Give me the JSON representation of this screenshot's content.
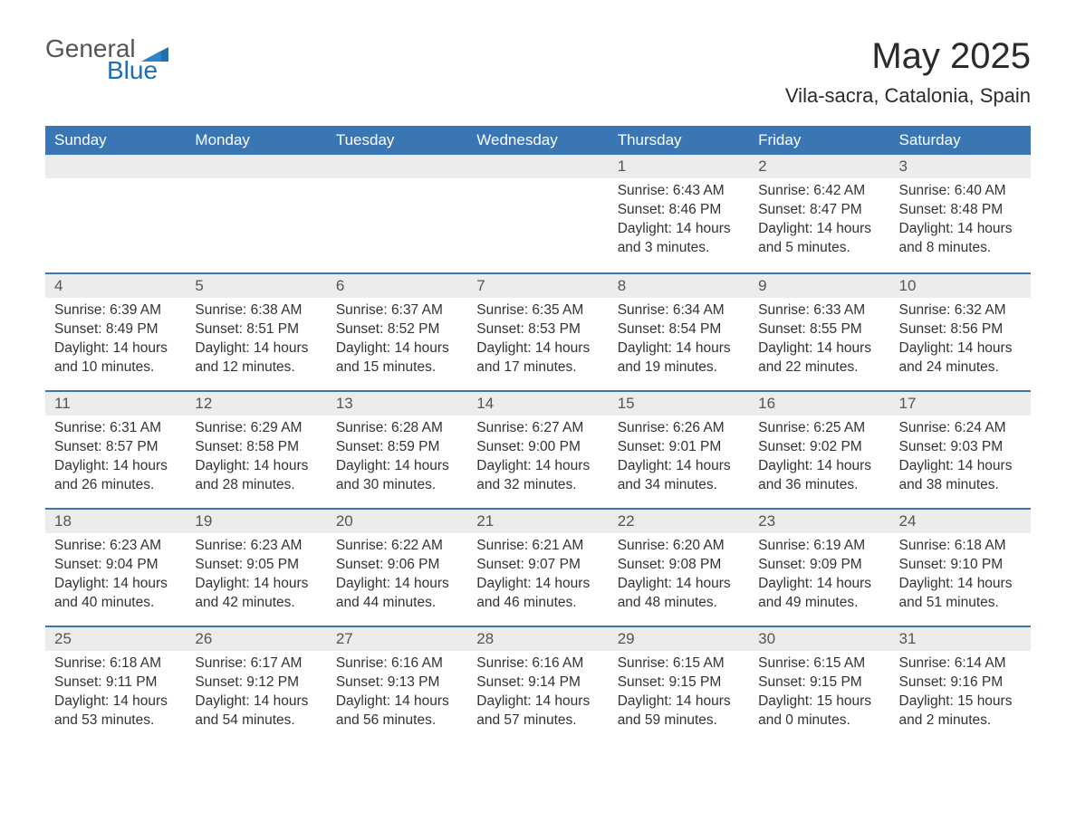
{
  "logo": {
    "text1": "General",
    "text2": "Blue",
    "shape_color": "#1f6fb2"
  },
  "title": "May 2025",
  "subtitle": "Vila-sacra, Catalonia, Spain",
  "colors": {
    "header_bg": "#3a76b3",
    "header_text": "#ffffff",
    "daynum_bg": "#ececec",
    "row_divider": "#3a76b3",
    "text": "#333333",
    "page_bg": "#ffffff"
  },
  "day_names": [
    "Sunday",
    "Monday",
    "Tuesday",
    "Wednesday",
    "Thursday",
    "Friday",
    "Saturday"
  ],
  "weeks": [
    [
      null,
      null,
      null,
      null,
      {
        "n": "1",
        "sunrise": "Sunrise: 6:43 AM",
        "sunset": "Sunset: 8:46 PM",
        "daylight": "Daylight: 14 hours and 3 minutes."
      },
      {
        "n": "2",
        "sunrise": "Sunrise: 6:42 AM",
        "sunset": "Sunset: 8:47 PM",
        "daylight": "Daylight: 14 hours and 5 minutes."
      },
      {
        "n": "3",
        "sunrise": "Sunrise: 6:40 AM",
        "sunset": "Sunset: 8:48 PM",
        "daylight": "Daylight: 14 hours and 8 minutes."
      }
    ],
    [
      {
        "n": "4",
        "sunrise": "Sunrise: 6:39 AM",
        "sunset": "Sunset: 8:49 PM",
        "daylight": "Daylight: 14 hours and 10 minutes."
      },
      {
        "n": "5",
        "sunrise": "Sunrise: 6:38 AM",
        "sunset": "Sunset: 8:51 PM",
        "daylight": "Daylight: 14 hours and 12 minutes."
      },
      {
        "n": "6",
        "sunrise": "Sunrise: 6:37 AM",
        "sunset": "Sunset: 8:52 PM",
        "daylight": "Daylight: 14 hours and 15 minutes."
      },
      {
        "n": "7",
        "sunrise": "Sunrise: 6:35 AM",
        "sunset": "Sunset: 8:53 PM",
        "daylight": "Daylight: 14 hours and 17 minutes."
      },
      {
        "n": "8",
        "sunrise": "Sunrise: 6:34 AM",
        "sunset": "Sunset: 8:54 PM",
        "daylight": "Daylight: 14 hours and 19 minutes."
      },
      {
        "n": "9",
        "sunrise": "Sunrise: 6:33 AM",
        "sunset": "Sunset: 8:55 PM",
        "daylight": "Daylight: 14 hours and 22 minutes."
      },
      {
        "n": "10",
        "sunrise": "Sunrise: 6:32 AM",
        "sunset": "Sunset: 8:56 PM",
        "daylight": "Daylight: 14 hours and 24 minutes."
      }
    ],
    [
      {
        "n": "11",
        "sunrise": "Sunrise: 6:31 AM",
        "sunset": "Sunset: 8:57 PM",
        "daylight": "Daylight: 14 hours and 26 minutes."
      },
      {
        "n": "12",
        "sunrise": "Sunrise: 6:29 AM",
        "sunset": "Sunset: 8:58 PM",
        "daylight": "Daylight: 14 hours and 28 minutes."
      },
      {
        "n": "13",
        "sunrise": "Sunrise: 6:28 AM",
        "sunset": "Sunset: 8:59 PM",
        "daylight": "Daylight: 14 hours and 30 minutes."
      },
      {
        "n": "14",
        "sunrise": "Sunrise: 6:27 AM",
        "sunset": "Sunset: 9:00 PM",
        "daylight": "Daylight: 14 hours and 32 minutes."
      },
      {
        "n": "15",
        "sunrise": "Sunrise: 6:26 AM",
        "sunset": "Sunset: 9:01 PM",
        "daylight": "Daylight: 14 hours and 34 minutes."
      },
      {
        "n": "16",
        "sunrise": "Sunrise: 6:25 AM",
        "sunset": "Sunset: 9:02 PM",
        "daylight": "Daylight: 14 hours and 36 minutes."
      },
      {
        "n": "17",
        "sunrise": "Sunrise: 6:24 AM",
        "sunset": "Sunset: 9:03 PM",
        "daylight": "Daylight: 14 hours and 38 minutes."
      }
    ],
    [
      {
        "n": "18",
        "sunrise": "Sunrise: 6:23 AM",
        "sunset": "Sunset: 9:04 PM",
        "daylight": "Daylight: 14 hours and 40 minutes."
      },
      {
        "n": "19",
        "sunrise": "Sunrise: 6:23 AM",
        "sunset": "Sunset: 9:05 PM",
        "daylight": "Daylight: 14 hours and 42 minutes."
      },
      {
        "n": "20",
        "sunrise": "Sunrise: 6:22 AM",
        "sunset": "Sunset: 9:06 PM",
        "daylight": "Daylight: 14 hours and 44 minutes."
      },
      {
        "n": "21",
        "sunrise": "Sunrise: 6:21 AM",
        "sunset": "Sunset: 9:07 PM",
        "daylight": "Daylight: 14 hours and 46 minutes."
      },
      {
        "n": "22",
        "sunrise": "Sunrise: 6:20 AM",
        "sunset": "Sunset: 9:08 PM",
        "daylight": "Daylight: 14 hours and 48 minutes."
      },
      {
        "n": "23",
        "sunrise": "Sunrise: 6:19 AM",
        "sunset": "Sunset: 9:09 PM",
        "daylight": "Daylight: 14 hours and 49 minutes."
      },
      {
        "n": "24",
        "sunrise": "Sunrise: 6:18 AM",
        "sunset": "Sunset: 9:10 PM",
        "daylight": "Daylight: 14 hours and 51 minutes."
      }
    ],
    [
      {
        "n": "25",
        "sunrise": "Sunrise: 6:18 AM",
        "sunset": "Sunset: 9:11 PM",
        "daylight": "Daylight: 14 hours and 53 minutes."
      },
      {
        "n": "26",
        "sunrise": "Sunrise: 6:17 AM",
        "sunset": "Sunset: 9:12 PM",
        "daylight": "Daylight: 14 hours and 54 minutes."
      },
      {
        "n": "27",
        "sunrise": "Sunrise: 6:16 AM",
        "sunset": "Sunset: 9:13 PM",
        "daylight": "Daylight: 14 hours and 56 minutes."
      },
      {
        "n": "28",
        "sunrise": "Sunrise: 6:16 AM",
        "sunset": "Sunset: 9:14 PM",
        "daylight": "Daylight: 14 hours and 57 minutes."
      },
      {
        "n": "29",
        "sunrise": "Sunrise: 6:15 AM",
        "sunset": "Sunset: 9:15 PM",
        "daylight": "Daylight: 14 hours and 59 minutes."
      },
      {
        "n": "30",
        "sunrise": "Sunrise: 6:15 AM",
        "sunset": "Sunset: 9:15 PM",
        "daylight": "Daylight: 15 hours and 0 minutes."
      },
      {
        "n": "31",
        "sunrise": "Sunrise: 6:14 AM",
        "sunset": "Sunset: 9:16 PM",
        "daylight": "Daylight: 15 hours and 2 minutes."
      }
    ]
  ]
}
